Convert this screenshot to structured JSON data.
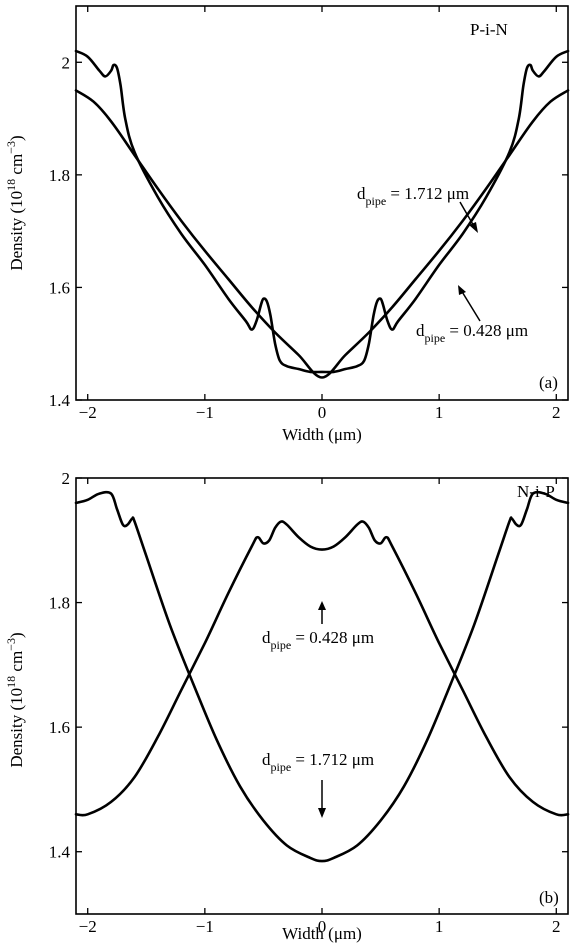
{
  "chart_data": [
    {
      "type": "line",
      "panel_tag": "(a)",
      "corner_label": "P-i-N",
      "xlabel": "Width (μm)",
      "ylabel": "Density (10^18 cm^-3)",
      "ylabel_parts": {
        "pre": "Density (10",
        "sup1": "18",
        "mid": " cm",
        "sup2": "−3",
        "post": ")"
      },
      "xlim": [
        -2.1,
        2.1
      ],
      "ylim": [
        1.4,
        2.1
      ],
      "xticks": [
        -2,
        -1,
        0,
        1,
        2
      ],
      "xtick_labels": [
        "−2",
        "−1",
        "0",
        "1",
        "2"
      ],
      "yticks": [
        1.4,
        1.6,
        1.8,
        2.0
      ],
      "ytick_labels": [
        "1.4",
        "1.6",
        "1.8",
        "2"
      ],
      "series": [
        {
          "name": "d_pipe = 1.712 μm",
          "x": [
            -2.1,
            -1.95,
            -1.8,
            -1.6,
            -1.4,
            -1.2,
            -1.0,
            -0.8,
            -0.6,
            -0.4,
            -0.2,
            0,
            0.2,
            0.4,
            0.6,
            0.8,
            1.0,
            1.2,
            1.4,
            1.6,
            1.8,
            1.95,
            2.1
          ],
          "y": [
            1.95,
            1.93,
            1.895,
            1.835,
            1.775,
            1.718,
            1.665,
            1.615,
            1.565,
            1.52,
            1.48,
            1.44,
            1.48,
            1.52,
            1.565,
            1.615,
            1.665,
            1.718,
            1.775,
            1.835,
            1.895,
            1.93,
            1.95
          ]
        },
        {
          "name": "d_pipe = 0.428 μm",
          "x": [
            -2.1,
            -2.0,
            -1.9,
            -1.85,
            -1.8,
            -1.78,
            -1.75,
            -1.72,
            -1.68,
            -1.6,
            -1.4,
            -1.2,
            -1.0,
            -0.8,
            -0.65,
            -0.6,
            -0.56,
            -0.52,
            -0.5,
            -0.47,
            -0.44,
            -0.4,
            -0.36,
            -0.3,
            -0.2,
            -0.1,
            0,
            0.1,
            0.2,
            0.3,
            0.36,
            0.4,
            0.44,
            0.47,
            0.5,
            0.52,
            0.56,
            0.6,
            0.65,
            0.8,
            1.0,
            1.2,
            1.4,
            1.6,
            1.68,
            1.72,
            1.75,
            1.78,
            1.8,
            1.85,
            1.9,
            2.0,
            2.1
          ],
          "y": [
            2.02,
            2.01,
            1.985,
            1.975,
            1.985,
            1.995,
            1.99,
            1.96,
            1.9,
            1.84,
            1.76,
            1.695,
            1.64,
            1.58,
            1.54,
            1.525,
            1.54,
            1.57,
            1.58,
            1.575,
            1.55,
            1.5,
            1.47,
            1.46,
            1.455,
            1.45,
            1.45,
            1.45,
            1.455,
            1.46,
            1.47,
            1.5,
            1.55,
            1.575,
            1.58,
            1.57,
            1.54,
            1.525,
            1.54,
            1.58,
            1.64,
            1.695,
            1.76,
            1.84,
            1.9,
            1.96,
            1.99,
            1.995,
            1.985,
            1.975,
            1.985,
            2.01,
            2.02
          ]
        }
      ],
      "annotations": [
        {
          "name_base": "d",
          "name_sub": "pipe",
          "value": " = 1.712 μm"
        },
        {
          "name_base": "d",
          "name_sub": "pipe",
          "value": " = 0.428 μm"
        }
      ]
    },
    {
      "type": "line",
      "panel_tag": "(b)",
      "corner_label": "N-i-P",
      "xlabel": "Width (μm)",
      "ylabel": "Density (10^18 cm^-3)",
      "ylabel_parts": {
        "pre": "Density (10",
        "sup1": "18",
        "mid": " cm",
        "sup2": "−3",
        "post": ")"
      },
      "xlim": [
        -2.1,
        2.1
      ],
      "ylim": [
        1.3,
        2.0
      ],
      "xticks": [
        -2,
        -1,
        0,
        1,
        2
      ],
      "xtick_labels": [
        "−2",
        "−1",
        "0",
        "1",
        "2"
      ],
      "yticks": [
        1.4,
        1.6,
        1.8,
        2.0
      ],
      "ytick_labels": [
        "1.4",
        "1.6",
        "1.8",
        "2"
      ],
      "series": [
        {
          "name": "d_pipe = 1.712 μm",
          "x": [
            -2.1,
            -2.0,
            -1.9,
            -1.8,
            -1.75,
            -1.7,
            -1.66,
            -1.62,
            -1.6,
            -1.5,
            -1.3,
            -1.1,
            -0.9,
            -0.7,
            -0.5,
            -0.3,
            -0.1,
            0,
            0.1,
            0.3,
            0.5,
            0.7,
            0.9,
            1.1,
            1.3,
            1.5,
            1.6,
            1.62,
            1.66,
            1.7,
            1.75,
            1.8,
            1.9,
            2.0,
            2.1
          ],
          "y": [
            1.96,
            1.965,
            1.975,
            1.975,
            1.95,
            1.925,
            1.925,
            1.935,
            1.93,
            1.875,
            1.765,
            1.67,
            1.58,
            1.505,
            1.45,
            1.41,
            1.39,
            1.385,
            1.39,
            1.41,
            1.45,
            1.505,
            1.58,
            1.67,
            1.765,
            1.875,
            1.93,
            1.935,
            1.925,
            1.925,
            1.95,
            1.975,
            1.975,
            1.965,
            1.96
          ]
        },
        {
          "name": "d_pipe = 0.428 μm",
          "x": [
            -2.1,
            -2.0,
            -1.8,
            -1.6,
            -1.4,
            -1.2,
            -1.0,
            -0.8,
            -0.6,
            -0.55,
            -0.5,
            -0.45,
            -0.4,
            -0.35,
            -0.3,
            -0.2,
            -0.1,
            0,
            0.1,
            0.2,
            0.3,
            0.35,
            0.4,
            0.45,
            0.5,
            0.55,
            0.6,
            0.8,
            1.0,
            1.2,
            1.4,
            1.6,
            1.8,
            2.0,
            2.1
          ],
          "y": [
            1.46,
            1.46,
            1.48,
            1.52,
            1.585,
            1.66,
            1.735,
            1.815,
            1.89,
            1.905,
            1.895,
            1.9,
            1.92,
            1.93,
            1.925,
            1.905,
            1.89,
            1.885,
            1.89,
            1.905,
            1.925,
            1.93,
            1.92,
            1.9,
            1.895,
            1.905,
            1.89,
            1.815,
            1.735,
            1.66,
            1.585,
            1.52,
            1.48,
            1.46,
            1.46
          ]
        }
      ],
      "annotations": [
        {
          "name_base": "d",
          "name_sub": "pipe",
          "value": " = 0.428 μm"
        },
        {
          "name_base": "d",
          "name_sub": "pipe",
          "value": " = 1.712 μm"
        }
      ]
    }
  ]
}
